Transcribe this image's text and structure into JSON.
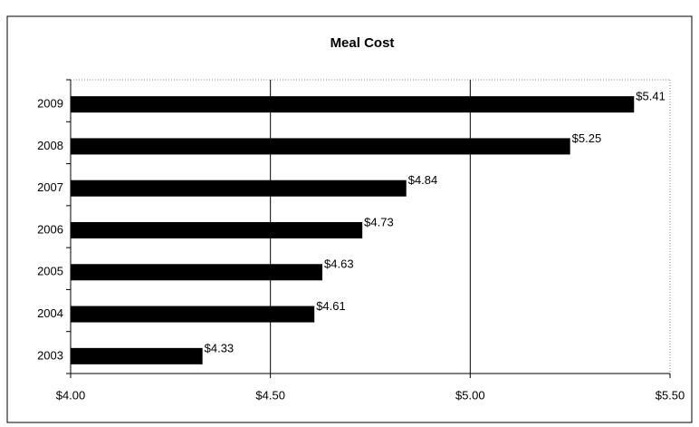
{
  "chart_data": {
    "type": "bar",
    "orientation": "horizontal",
    "title": "Meal Cost",
    "categories": [
      "2009",
      "2008",
      "2007",
      "2006",
      "2005",
      "2004",
      "2003"
    ],
    "values": [
      5.41,
      5.25,
      4.84,
      4.73,
      4.63,
      4.61,
      4.33
    ],
    "value_labels": [
      "$5.41",
      "$5.25",
      "$4.84",
      "$4.73",
      "$4.63",
      "$4.61",
      "$4.33"
    ],
    "color": "#000000",
    "xlim": [
      4,
      5.5
    ],
    "xticks": [
      {
        "value": 4,
        "label": "$4.00"
      },
      {
        "value": 4.5,
        "label": "$4.50"
      },
      {
        "value": 5,
        "label": "$5.00"
      },
      {
        "value": 5.5,
        "label": "$5.50"
      }
    ],
    "grid": true
  }
}
